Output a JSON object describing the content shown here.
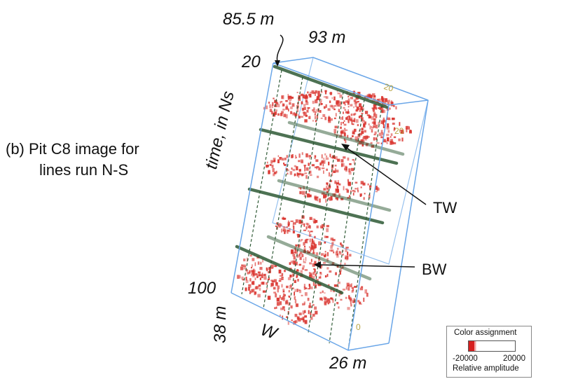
{
  "caption": {
    "line1": "(b)  Pit C8 image for",
    "line2": "lines run N-S"
  },
  "dimensions": {
    "top_offset": "85.5 m",
    "top_width": "93 m",
    "time_start": "20",
    "time_end": "100",
    "time_axis_label": "time, in Ns",
    "bottom_left": "38 m",
    "bottom_right": "26 m",
    "direction": "W",
    "face_label_top": "20",
    "face_label_top_2": "20",
    "face_label_bottom": "0"
  },
  "annotations": {
    "tw": "TW",
    "bw": "BW"
  },
  "legend": {
    "title": "Color assignment",
    "min": "-20000",
    "max": "20000",
    "units": "Relative amplitude",
    "colors": {
      "negative": "#d61f1f",
      "positive": "#ffffff"
    }
  },
  "colors": {
    "box_edges": "#6aa6e8",
    "reflector": "#d9322c",
    "grid_lines": "#2f5a36"
  }
}
